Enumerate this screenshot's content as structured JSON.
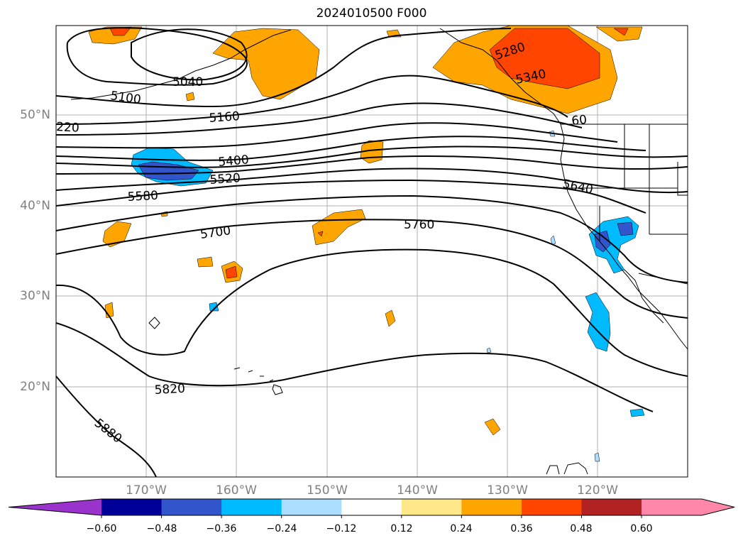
{
  "title": "2024010500 F000",
  "lat_labels": [
    "50°N",
    "40°N",
    "30°N",
    "20°N"
  ],
  "lon_labels": [
    "170°W",
    "160°W",
    "150°W",
    "140°W",
    "130°W",
    "120°W"
  ],
  "contour_labels": [
    "5040",
    "5100",
    "5160",
    "220",
    "5280",
    "5340",
    "60",
    "5400",
    "5520",
    "5580",
    "5640",
    "5700",
    "5760",
    "5820",
    "5880"
  ],
  "colorbar": {
    "ticks": [
      "−0.60",
      "−0.48",
      "−0.36",
      "−0.24",
      "−0.12",
      "0.12",
      "0.24",
      "0.36",
      "0.48",
      "0.60"
    ],
    "colors": [
      "#9933cc",
      "#000099",
      "#3355cc",
      "#00bbff",
      "#aaddff",
      "#ffffff",
      "#ffe88a",
      "#ffa500",
      "#ff4500",
      "#b22222",
      "#ff88aa",
      "#ff88aa"
    ]
  }
}
